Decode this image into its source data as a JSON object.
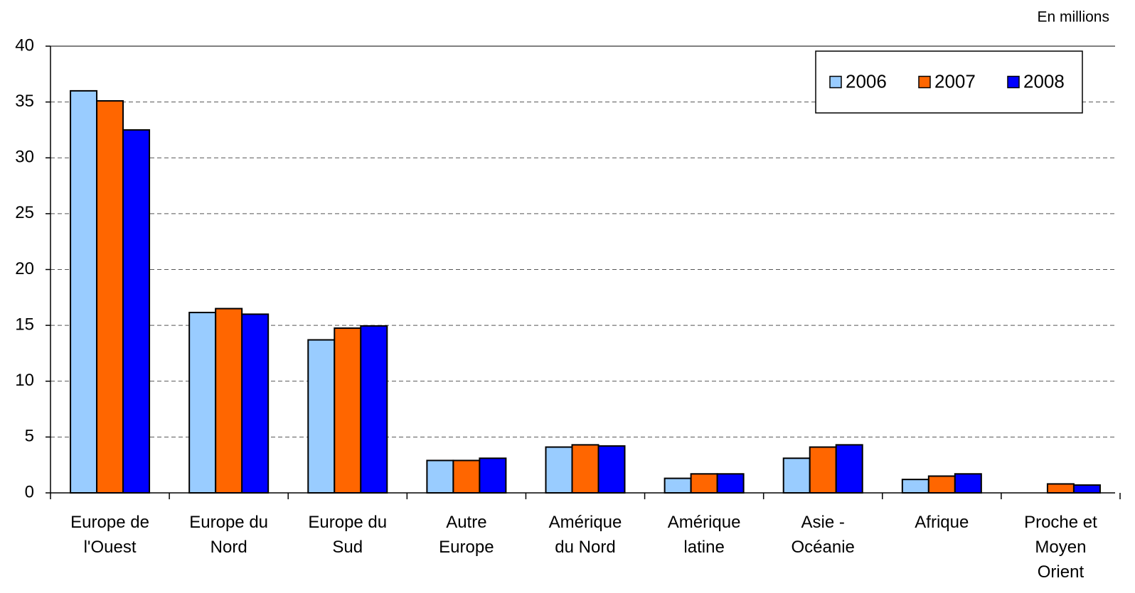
{
  "chart_data": {
    "type": "bar",
    "annotation": "En millions",
    "categories": [
      "Europe de l'Ouest",
      "Europe du Nord",
      "Europe du Sud",
      "Autre Europe",
      "Amérique du Nord",
      "Amérique latine",
      "Asie - Océanie",
      "Afrique",
      "Proche et Moyen Orient"
    ],
    "series": [
      {
        "name": "2006",
        "color": "#99ccff",
        "values": [
          36.0,
          16.15,
          13.7,
          2.9,
          4.1,
          1.3,
          3.1,
          1.2,
          null
        ]
      },
      {
        "name": "2007",
        "color": "#ff6600",
        "values": [
          35.1,
          16.5,
          14.75,
          2.9,
          4.3,
          1.7,
          4.1,
          1.5,
          0.8
        ]
      },
      {
        "name": "2008",
        "color": "#0000ff",
        "values": [
          32.5,
          16.0,
          14.95,
          3.1,
          4.2,
          1.7,
          4.3,
          1.7,
          0.7
        ]
      }
    ],
    "ylim": [
      0,
      40
    ],
    "yticks": [
      0,
      5,
      10,
      15,
      20,
      25,
      30,
      35,
      40
    ],
    "grid": true,
    "legend": "top-right"
  }
}
